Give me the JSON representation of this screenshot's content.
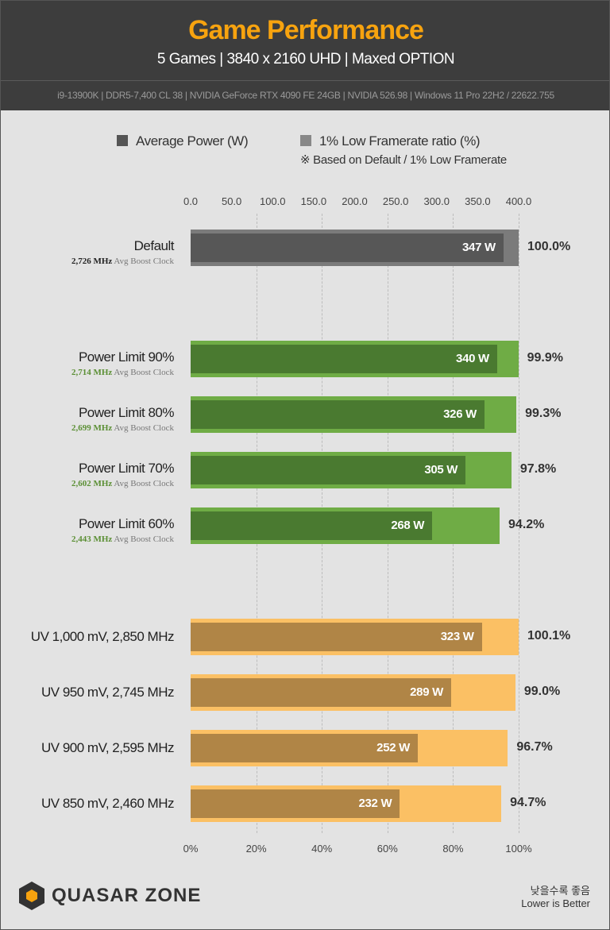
{
  "header": {
    "title": "Game Performance",
    "subtitle": "5 Games  |  3840 x 2160 UHD  |  Maxed OPTION",
    "spec": "i9-13900K  |  DDR5-7,400 CL 38  |  NVIDIA GeForce RTX 4090 FE 24GB  |  NVIDIA 526.98  |   Windows 11 Pro 22H2 / 22622.755"
  },
  "footer": {
    "logo_text": "QUASAR ZONE",
    "note_ko": "낮을수록 좋음",
    "note_en": "Lower is Better"
  },
  "colors": {
    "header_bg": "#3d3d3d",
    "title": "#f7a30f",
    "default_outer": "#7b7b7b",
    "default_inner": "#575757",
    "pl_outer": "#6fac45",
    "pl_inner": "#4a7a30",
    "uv_outer": "#fbc064",
    "uv_inner": "#b08546",
    "pl_clock": "#5b8f34"
  },
  "chart_data": {
    "type": "bar",
    "orientation": "horizontal",
    "title": "Game Performance",
    "legend": [
      {
        "label": "Average Power (W)",
        "color": "#555555"
      },
      {
        "label": "1% Low Framerate ratio (%)",
        "color": "#888888"
      }
    ],
    "legend_note": "※ Based on Default / 1% Low Framerate",
    "legend_placement": "top",
    "top_axis": {
      "ticks": [
        "0.0",
        "50.0",
        "100.0",
        "150.0",
        "200.0",
        "250.0",
        "300.0",
        "350.0",
        "400.0"
      ],
      "range": [
        0,
        400
      ]
    },
    "bottom_axis": {
      "ticks": [
        "0%",
        "20%",
        "40%",
        "60%",
        "80%",
        "100%"
      ],
      "range": [
        0,
        100
      ]
    },
    "grid": true,
    "categories": [
      {
        "label": "Default",
        "clock": "2,726 MHz",
        "clock_suffix": "Avg Boost Clock",
        "group": "default",
        "power": 347,
        "power_label": "347 W",
        "ratio": 100.0,
        "ratio_label": "100.0%"
      },
      {
        "label": "Power Limit 90%",
        "clock": "2,714 MHz",
        "clock_suffix": "Avg Boost Clock",
        "group": "pl",
        "power": 340,
        "power_label": "340 W",
        "ratio": 99.9,
        "ratio_label": "99.9%"
      },
      {
        "label": "Power Limit 80%",
        "clock": "2,699 MHz",
        "clock_suffix": "Avg Boost Clock",
        "group": "pl",
        "power": 326,
        "power_label": "326 W",
        "ratio": 99.3,
        "ratio_label": "99.3%"
      },
      {
        "label": "Power Limit 70%",
        "clock": "2,602 MHz",
        "clock_suffix": "Avg Boost Clock",
        "group": "pl",
        "power": 305,
        "power_label": "305 W",
        "ratio": 97.8,
        "ratio_label": "97.8%"
      },
      {
        "label": "Power Limit 60%",
        "clock": "2,443 MHz",
        "clock_suffix": "Avg Boost Clock",
        "group": "pl",
        "power": 268,
        "power_label": "268 W",
        "ratio": 94.2,
        "ratio_label": "94.2%"
      },
      {
        "label": "UV 1,000 mV, 2,850 MHz",
        "group": "uv",
        "power": 323,
        "power_label": "323 W",
        "ratio": 100.1,
        "ratio_label": "100.1%"
      },
      {
        "label": "UV 950 mV, 2,745 MHz",
        "group": "uv",
        "power": 289,
        "power_label": "289 W",
        "ratio": 99.0,
        "ratio_label": "99.0%"
      },
      {
        "label": "UV 900 mV, 2,595 MHz",
        "group": "uv",
        "power": 252,
        "power_label": "252 W",
        "ratio": 96.7,
        "ratio_label": "96.7%"
      },
      {
        "label": "UV 850 mV, 2,460 MHz",
        "group": "uv",
        "power": 232,
        "power_label": "232 W",
        "ratio": 94.7,
        "ratio_label": "94.7%"
      }
    ]
  }
}
